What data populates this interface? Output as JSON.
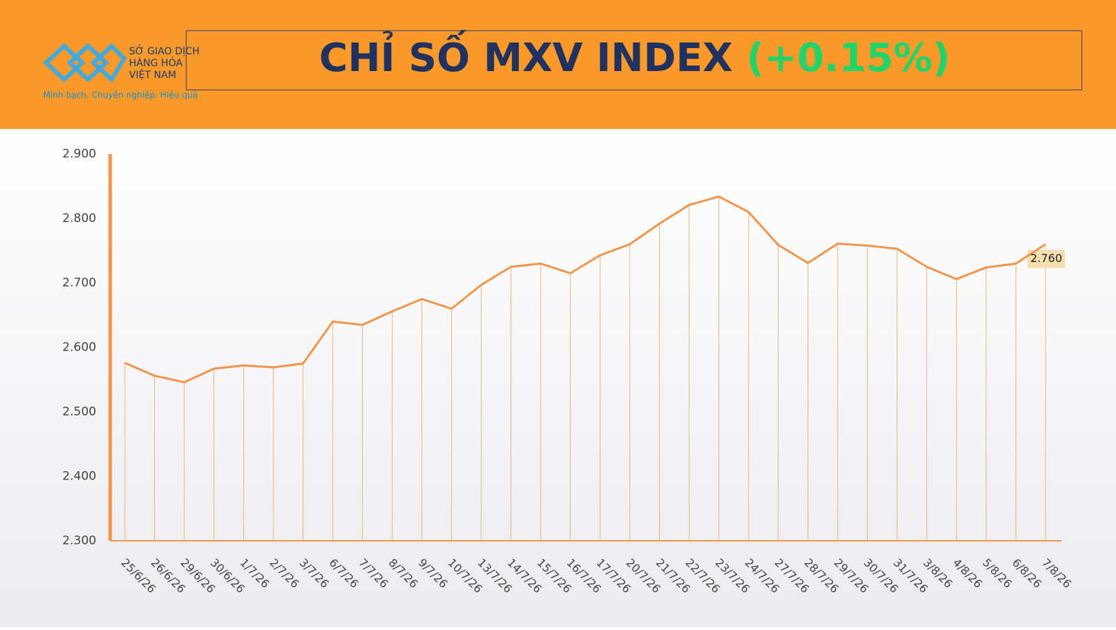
{
  "header": {
    "logo_lines": [
      "SỞ GIAO DỊCH",
      "HÀNG HÓA",
      "VIỆT NAM"
    ],
    "slogan": "Minh bạch. Chuyên nghiệp. Hiệu quả"
  },
  "chart_data": {
    "type": "line",
    "title": "CHỈ SỐ MXV INDEX",
    "title_change": "(+0.15%)",
    "categories": [
      "25/6/26",
      "26/6/26",
      "29/6/26",
      "30/6/26",
      "1/7/26",
      "2/7/26",
      "3/7/26",
      "6/7/26",
      "7/7/26",
      "8/7/26",
      "9/7/26",
      "10/7/26",
      "13/7/26",
      "14/7/26",
      "15/7/26",
      "16/7/26",
      "17/7/26",
      "20/7/26",
      "21/7/26",
      "22/7/26",
      "23/7/26",
      "24/7/26",
      "27/7/26",
      "28/7/26",
      "29/7/26",
      "30/7/26",
      "31/7/26",
      "3/8/26",
      "4/8/26",
      "5/8/26",
      "6/8/26",
      "7/8/26"
    ],
    "values": [
      2576,
      2556,
      2546,
      2567,
      2572,
      2569,
      2575,
      2640,
      2635,
      2656,
      2675,
      2660,
      2697,
      2725,
      2730,
      2715,
      2743,
      2760,
      2792,
      2821,
      2834,
      2810,
      2759,
      2731,
      2761,
      2758,
      2753,
      2725,
      2706,
      2724,
      2730,
      2760
    ],
    "value_labels": [
      null,
      null,
      null,
      null,
      null,
      null,
      null,
      null,
      null,
      null,
      null,
      null,
      null,
      null,
      null,
      null,
      null,
      null,
      null,
      null,
      null,
      null,
      null,
      null,
      null,
      null,
      null,
      null,
      null,
      null,
      null,
      "2.760"
    ],
    "color": "#f0954a",
    "ylim": [
      2300,
      2900
    ],
    "yticks": [
      {
        "value": 2300,
        "label": "2.300"
      },
      {
        "value": 2400,
        "label": "2.400"
      },
      {
        "value": 2500,
        "label": "2.500"
      },
      {
        "value": 2600,
        "label": "2.600"
      },
      {
        "value": 2700,
        "label": "2.700"
      },
      {
        "value": 2800,
        "label": "2.800"
      },
      {
        "value": 2900,
        "label": "2.900"
      }
    ],
    "grid": false
  }
}
